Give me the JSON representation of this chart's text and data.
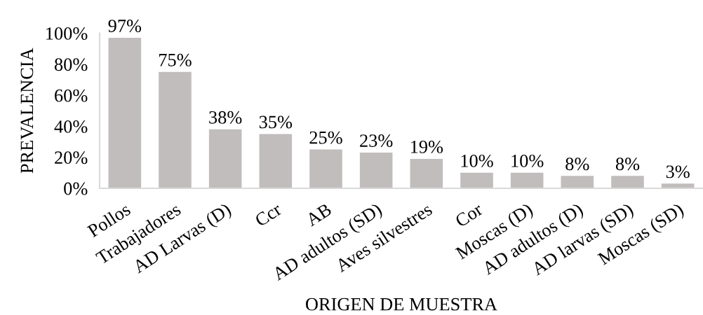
{
  "chart_data": {
    "type": "bar",
    "categories": [
      "Pollos",
      "Trabajadores",
      "AD Larvas (D)",
      "Ccr",
      "AB",
      "AD adultos (SD)",
      "Aves silvestres",
      "Cor",
      "Moscas (D)",
      "AD adultos (D)",
      "AD larvas (SD)",
      "Moscas (SD)"
    ],
    "values": [
      97,
      75,
      38,
      35,
      25,
      23,
      19,
      10,
      10,
      8,
      8,
      3
    ],
    "value_labels": [
      "97%",
      "75%",
      "38%",
      "35%",
      "25%",
      "23%",
      "19%",
      "10%",
      "10%",
      "8%",
      "8%",
      "3%"
    ],
    "color": "#c0bdbc",
    "xlabel": "ORIGEN DE MUESTRA",
    "ylabel": "PREVALENCIA",
    "ylim": [
      0,
      100
    ],
    "yticks": [
      {
        "value": 0,
        "label": "0%"
      },
      {
        "value": 20,
        "label": "20%"
      },
      {
        "value": 40,
        "label": "40%"
      },
      {
        "value": 60,
        "label": "60%"
      },
      {
        "value": 80,
        "label": "80%"
      },
      {
        "value": 100,
        "label": "100%"
      }
    ],
    "grid": false,
    "legend": false
  }
}
